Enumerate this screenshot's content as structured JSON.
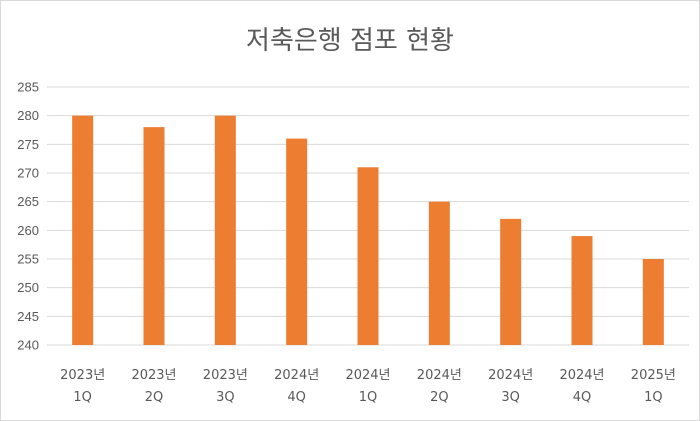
{
  "chart_data": {
    "type": "bar",
    "title": "저축은행 점포 현황",
    "categories": [
      [
        "2023년",
        "1Q"
      ],
      [
        "2023년",
        "2Q"
      ],
      [
        "2023년",
        "3Q"
      ],
      [
        "2024년",
        "4Q"
      ],
      [
        "2024년",
        "1Q"
      ],
      [
        "2024년",
        "2Q"
      ],
      [
        "2024년",
        "3Q"
      ],
      [
        "2024년",
        "4Q"
      ],
      [
        "2025년",
        "1Q"
      ]
    ],
    "values": [
      280,
      278,
      280,
      276,
      271,
      265,
      262,
      259,
      255
    ],
    "ylim": [
      240,
      285
    ],
    "yticks": [
      240,
      245,
      250,
      255,
      260,
      265,
      270,
      275,
      280,
      285
    ],
    "bar_color": "#ed7d31",
    "grid": true,
    "legend": "none"
  }
}
